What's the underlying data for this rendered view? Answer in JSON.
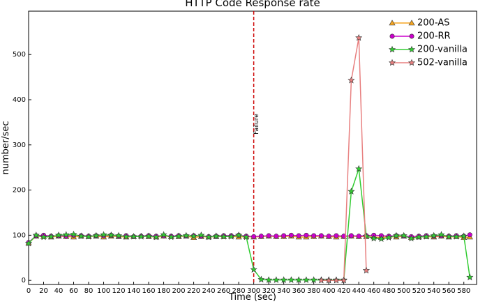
{
  "chart_data": {
    "type": "line",
    "title": "HTTP Code Response rate",
    "x_label": "Time (sec)",
    "y_label": "number/sec",
    "x": [
      0,
      10,
      20,
      30,
      40,
      50,
      60,
      70,
      80,
      90,
      100,
      110,
      120,
      130,
      140,
      150,
      160,
      170,
      180,
      190,
      200,
      210,
      220,
      230,
      240,
      250,
      260,
      270,
      280,
      290,
      300,
      310,
      320,
      330,
      340,
      350,
      360,
      370,
      380,
      390,
      400,
      410,
      420,
      430,
      440,
      450,
      460,
      470,
      480,
      490,
      500,
      510,
      520,
      530,
      540,
      550,
      560,
      570,
      580,
      588
    ],
    "series": [
      {
        "name": "200-AS",
        "color": "#f5a623",
        "marker": "triangle",
        "values": [
          83,
          98,
          97,
          96,
          98,
          97,
          96,
          98,
          97,
          98,
          96,
          98,
          97,
          96,
          97,
          98,
          97,
          96,
          98,
          97,
          97,
          98,
          95,
          97,
          96,
          97,
          97,
          98,
          96,
          97,
          96,
          97,
          98,
          97,
          97,
          98,
          96,
          96,
          97,
          98,
          97,
          96,
          97,
          98,
          97,
          97,
          96,
          95,
          97,
          96,
          98,
          95,
          96,
          97,
          96,
          98,
          96,
          97,
          95,
          96
        ]
      },
      {
        "name": "200-RR",
        "color": "#cc00cc",
        "marker": "circle",
        "values": [
          84,
          99,
          100,
          98,
          99,
          98,
          100,
          99,
          98,
          99,
          99,
          100,
          98,
          99,
          97,
          98,
          99,
          98,
          99,
          98,
          99,
          98,
          99,
          98,
          97,
          98,
          99,
          99,
          100,
          98,
          97,
          98,
          99,
          98,
          99,
          100,
          99,
          100,
          99,
          99,
          98,
          99,
          98,
          99,
          98,
          99,
          100,
          99,
          98,
          99,
          98,
          97,
          98,
          99,
          98,
          99,
          98,
          99,
          98,
          101
        ]
      },
      {
        "name": "200-vanilla",
        "color": "#33cc33",
        "marker": "star",
        "values": [
          82,
          100,
          96,
          97,
          100,
          101,
          102,
          98,
          97,
          99,
          101,
          100,
          99,
          97,
          97,
          97,
          98,
          96,
          101,
          96,
          98,
          99,
          98,
          100,
          96,
          98,
          97,
          97,
          100,
          96,
          24,
          2,
          1,
          1,
          1,
          1,
          1,
          1,
          1,
          1,
          1,
          1,
          1,
          197,
          247,
          98,
          93,
          92,
          95,
          99,
          99,
          93,
          96,
          97,
          99,
          101,
          97,
          97,
          98,
          7
        ]
      },
      {
        "name": "502-vanilla",
        "color": "#e88080",
        "marker": "star",
        "values": [
          null,
          null,
          null,
          null,
          null,
          null,
          null,
          null,
          null,
          null,
          null,
          null,
          null,
          null,
          null,
          null,
          null,
          null,
          null,
          null,
          null,
          null,
          null,
          null,
          null,
          null,
          null,
          null,
          null,
          null,
          null,
          null,
          null,
          null,
          null,
          null,
          null,
          null,
          null,
          0,
          0,
          0,
          0,
          443,
          537,
          22,
          null,
          null,
          null,
          null,
          null,
          null,
          null,
          null,
          null,
          null,
          null,
          null,
          null,
          null
        ]
      }
    ],
    "annotation": {
      "x": 300,
      "text": "Failure",
      "color": "#cc0000"
    },
    "xlim": [
      0,
      597
    ],
    "ylim": [
      -9,
      596
    ],
    "xticks": [
      0,
      20,
      40,
      60,
      80,
      100,
      120,
      140,
      160,
      180,
      200,
      220,
      240,
      260,
      280,
      300,
      320,
      340,
      360,
      380,
      400,
      420,
      440,
      460,
      480,
      500,
      520,
      540,
      560,
      580
    ],
    "yticks": [
      0,
      100,
      200,
      300,
      400,
      500
    ],
    "legend": "upper right",
    "grid": false
  }
}
